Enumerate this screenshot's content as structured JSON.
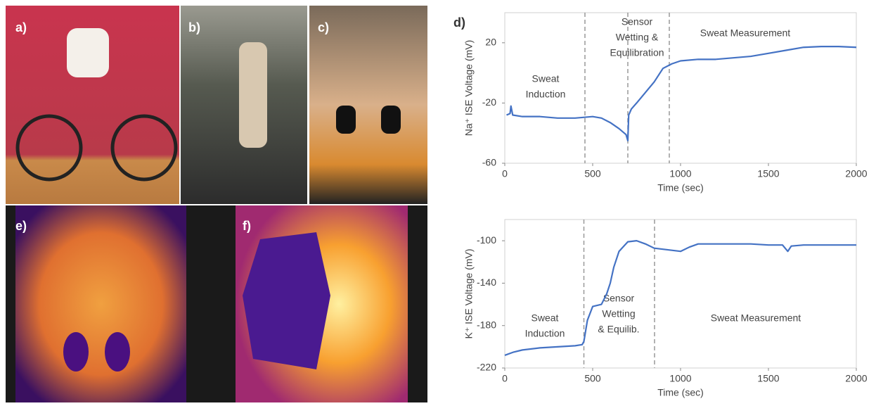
{
  "photo_labels": [
    "a)",
    "b)",
    "c)",
    "e)",
    "f)"
  ],
  "chart_data": [
    {
      "type": "line",
      "panel_label": "d)",
      "xlabel": "Time (sec)",
      "ylabel": "Na⁺ ISE Voltage (mV)",
      "xlim": [
        0,
        2000
      ],
      "xticks": [
        0,
        500,
        1000,
        1500,
        2000
      ],
      "ylim": [
        -60,
        40
      ],
      "yticks": [
        -60,
        -20,
        20
      ],
      "vlines": [
        456,
        700,
        936
      ],
      "annotations": [
        [
          "Sweat",
          "Induction"
        ],
        [
          "Sensor",
          "Wetting &",
          "Equilibration"
        ],
        [
          "Sweat Measurement"
        ]
      ],
      "x": [
        10,
        30,
        35,
        45,
        100,
        200,
        300,
        400,
        500,
        550,
        600,
        650,
        690,
        700,
        705,
        720,
        750,
        800,
        850,
        900,
        950,
        1000,
        1100,
        1200,
        1300,
        1400,
        1500,
        1600,
        1700,
        1800,
        1900,
        2000
      ],
      "series": [
        {
          "color": "#4472c4",
          "values": [
            -28,
            -27,
            -22,
            -28,
            -29,
            -29,
            -30,
            -30,
            -29,
            -30,
            -33,
            -37,
            -41,
            -45,
            -28,
            -24,
            -20,
            -13,
            -6,
            3,
            6,
            8,
            9,
            9,
            10,
            11,
            13,
            15,
            17,
            17.5,
            17.5,
            17
          ]
        }
      ]
    },
    {
      "type": "line",
      "xlabel": "Time (sec)",
      "ylabel": "K⁺ ISE Voltage (mV)",
      "xlim": [
        0,
        2000
      ],
      "xticks": [
        0,
        500,
        1000,
        1500,
        2000
      ],
      "ylim": [
        -220,
        -80
      ],
      "yticks": [
        -220,
        -180,
        -140,
        -100
      ],
      "vlines": [
        450,
        852
      ],
      "annotations": [
        [
          "Sweat",
          "Induction"
        ],
        [
          "Sensor",
          "Wetting",
          "& Equilib."
        ],
        [
          "Sweat Measurement"
        ]
      ],
      "x": [
        0,
        50,
        100,
        200,
        300,
        400,
        440,
        450,
        470,
        500,
        550,
        580,
        600,
        620,
        650,
        700,
        750,
        800,
        850,
        900,
        1000,
        1050,
        1100,
        1200,
        1300,
        1400,
        1500,
        1580,
        1610,
        1630,
        1700,
        1800,
        1900,
        2000
      ],
      "series": [
        {
          "color": "#4472c4",
          "values": [
            -208,
            -205,
            -203,
            -201,
            -200,
            -199,
            -198,
            -195,
            -175,
            -162,
            -160,
            -150,
            -140,
            -125,
            -110,
            -101,
            -100,
            -103,
            -107,
            -108,
            -110,
            -106,
            -103,
            -103,
            -103,
            -103,
            -104,
            -104,
            -110,
            -105,
            -104,
            -104,
            -104,
            -104
          ]
        }
      ]
    }
  ]
}
